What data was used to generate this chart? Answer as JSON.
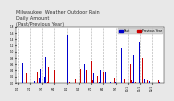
{
  "title": "Milwaukee  Weather Outdoor Rain\nDaily Amount\n(Past/Previous Year)",
  "title_fontsize": 3.5,
  "background_color": "#e8e8e8",
  "plot_bg_color": "#ffffff",
  "bar_width": 0.4,
  "ylim": [
    0,
    1.8
  ],
  "n_points": 120,
  "legend_labels": [
    "Past",
    "Previous Year"
  ],
  "legend_colors": [
    "#0000cc",
    "#cc0000"
  ],
  "grid_color": "#aaaaaa",
  "blue_color": "#0000cc",
  "red_color": "#cc0000"
}
